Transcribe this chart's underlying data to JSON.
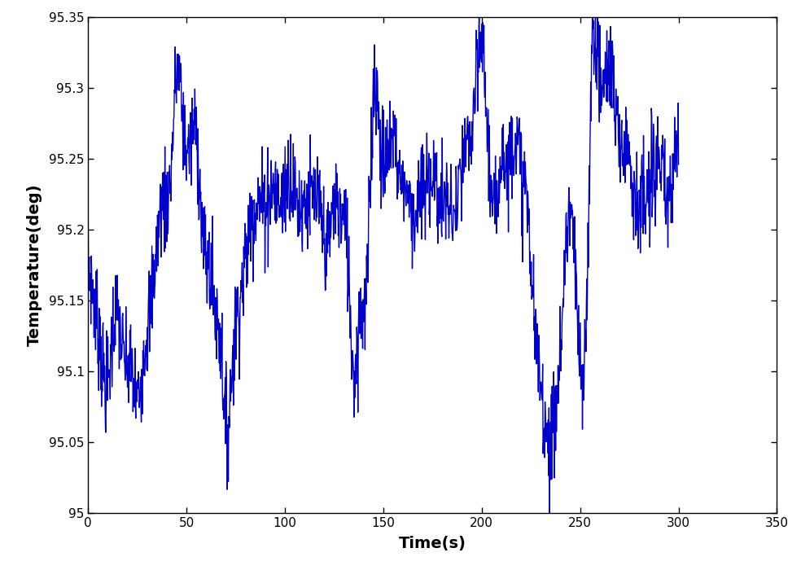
{
  "title": "",
  "xlabel": "Time(s)",
  "ylabel": "Temperature(deg)",
  "xlim": [
    0,
    350
  ],
  "ylim": [
    95,
    95.35
  ],
  "xticks": [
    0,
    50,
    100,
    150,
    200,
    250,
    300,
    350
  ],
  "yticks": [
    95,
    95.05,
    95.1,
    95.15,
    95.2,
    95.25,
    95.3,
    95.35
  ],
  "ytick_labels": [
    "95",
    "95.05",
    "95.1",
    "95.15",
    "95.2",
    "95.25",
    "95.3",
    "95.35"
  ],
  "line_color": "#0000cc",
  "line_width": 1.0,
  "figsize": [
    9.84,
    7.0
  ],
  "dpi": 100
}
